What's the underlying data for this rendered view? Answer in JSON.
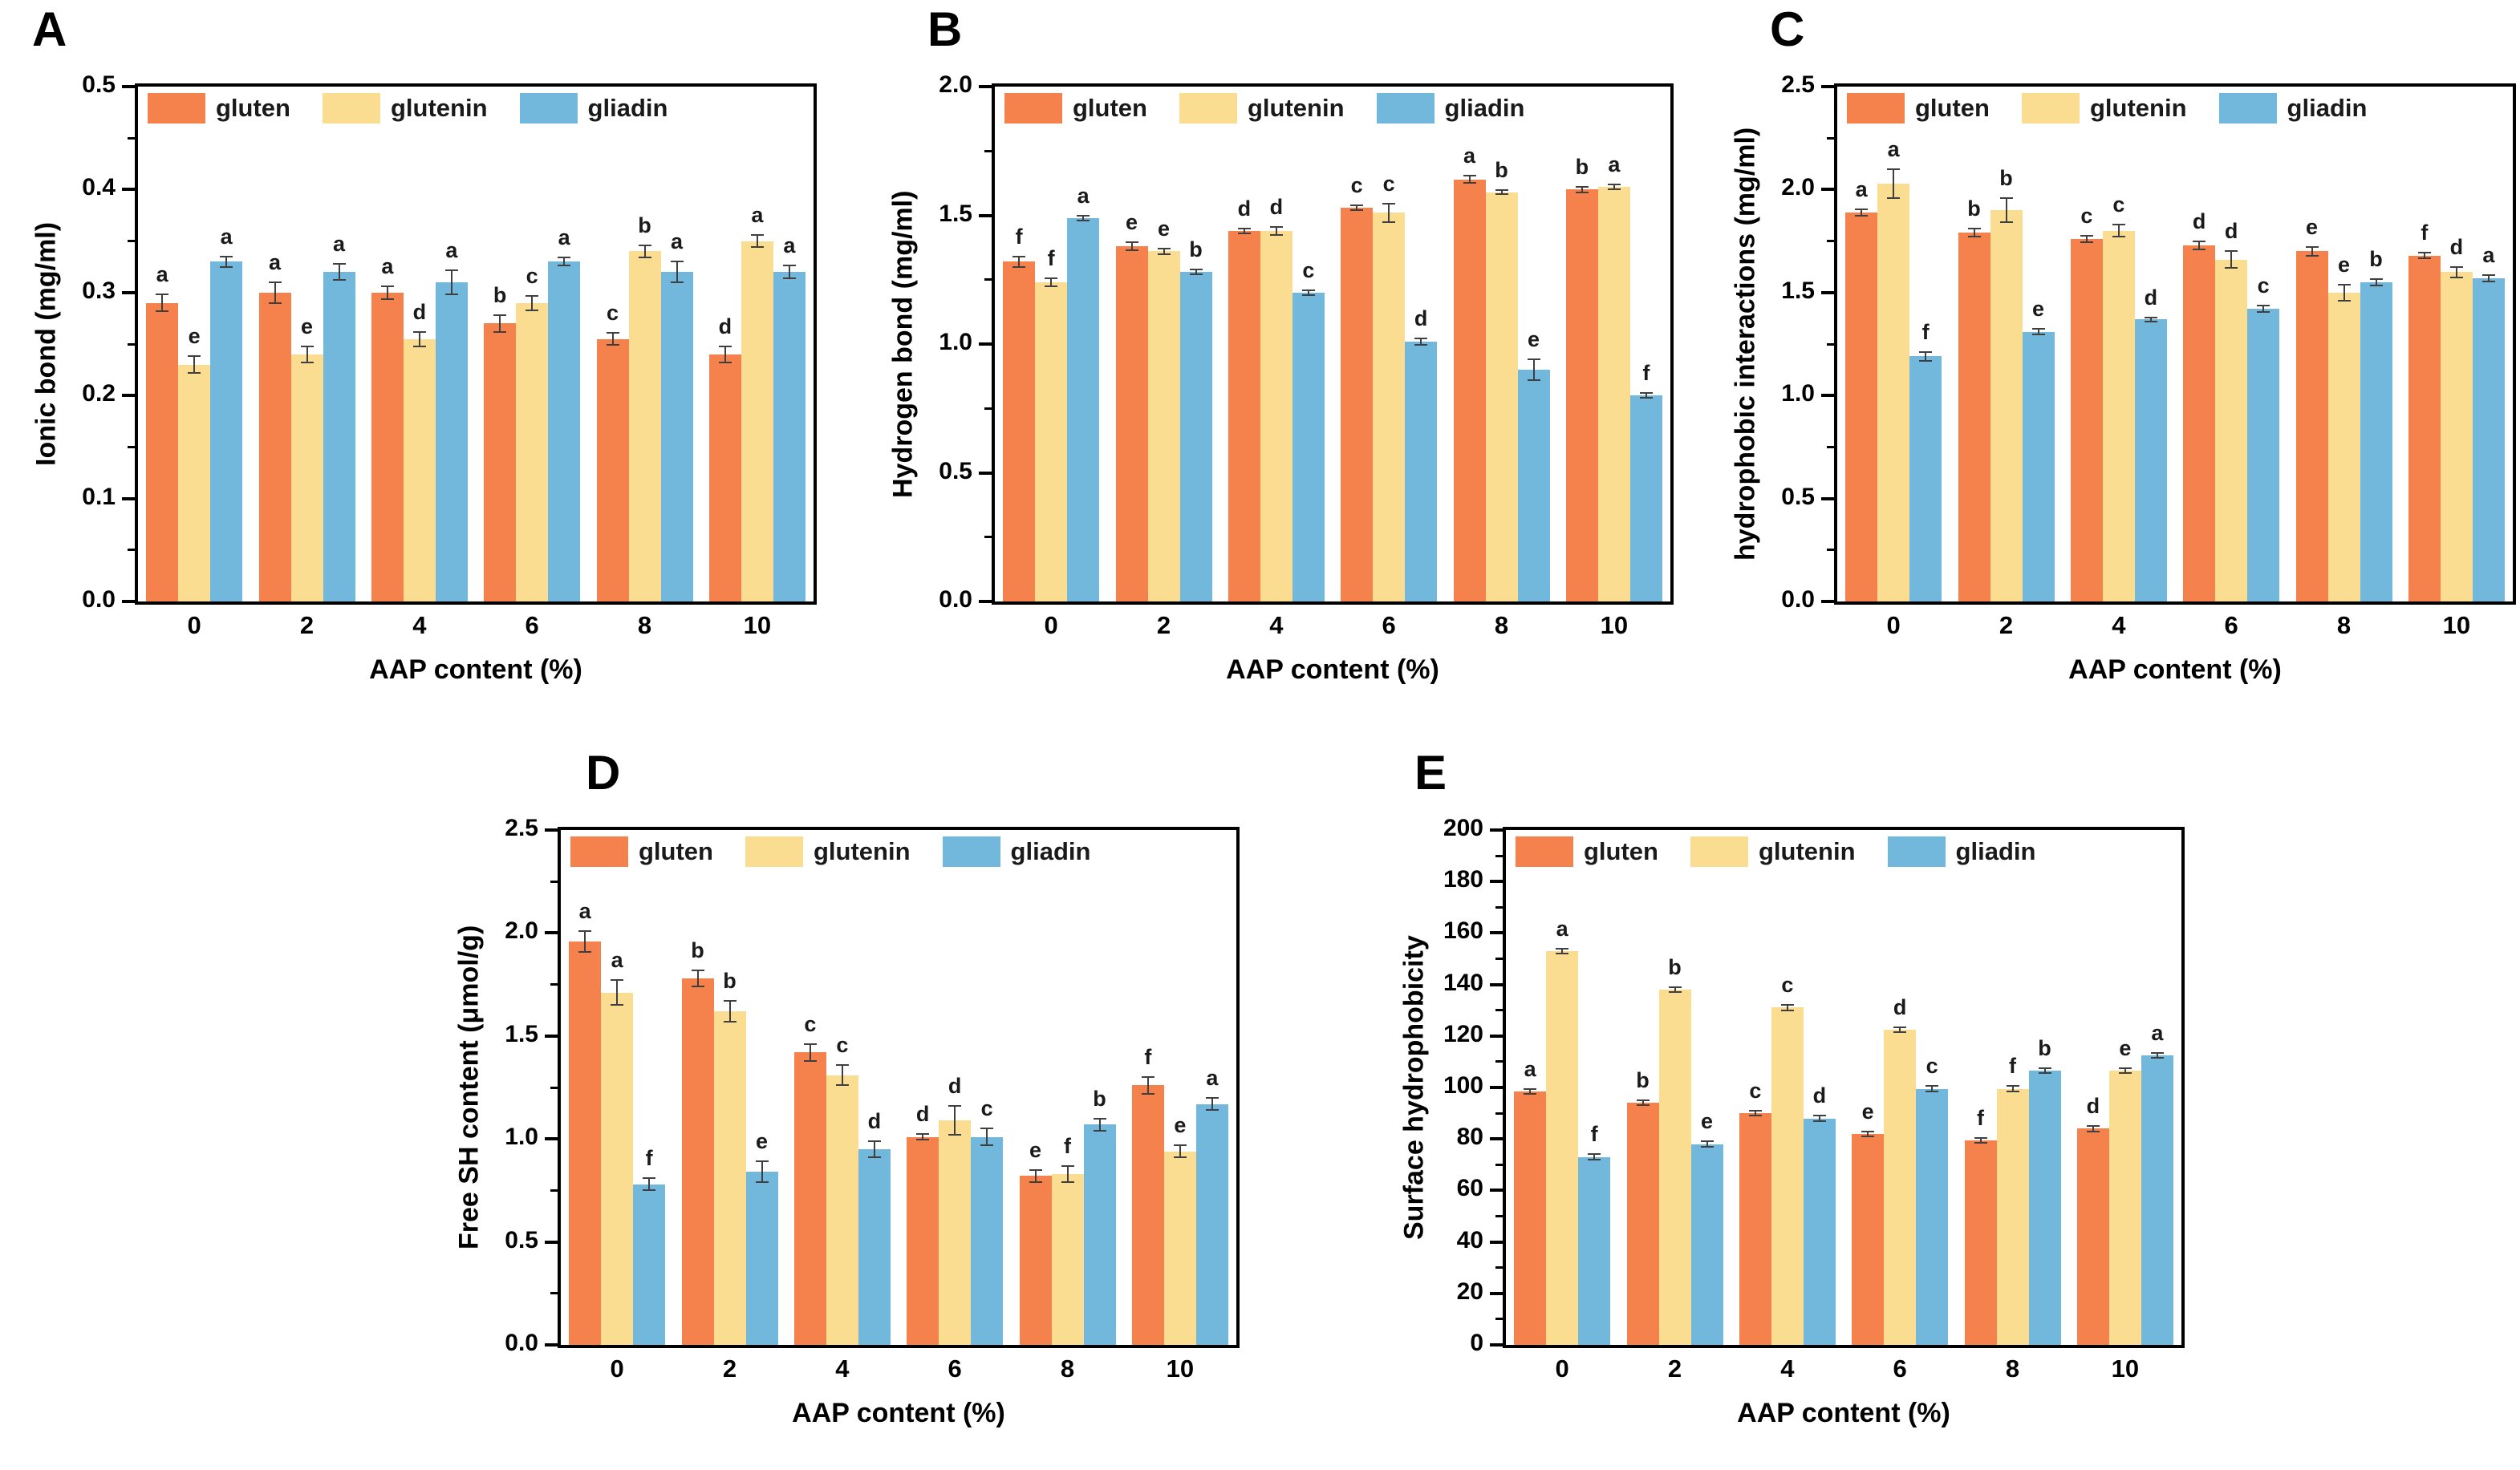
{
  "figure": {
    "background": "#ffffff",
    "description": "Five-panel grouped bar figure comparing chemical interactions of gluten, glutenin and gliadin at increasing AAP content"
  },
  "colors": {
    "gluten": "#F5814D",
    "glutenin": "#FBDD92",
    "gliadin": "#72B8DD",
    "error_bar": "#3f3f3f",
    "axis": "#000000",
    "text": "#000000"
  },
  "legend": {
    "items": [
      "gluten",
      "glutenin",
      "gliadin"
    ],
    "position": "top-left"
  },
  "chart_data": [
    {
      "id": "A",
      "type": "bar",
      "ylabel": "Ionic bond (mg/ml)",
      "xlabel": "AAP content (%)",
      "categories": [
        "0",
        "2",
        "4",
        "6",
        "8",
        "10"
      ],
      "ylim": [
        0,
        0.5
      ],
      "ytick_step": 0.1,
      "ytick_decimals": 1,
      "grid": false,
      "legend_position": "top-left",
      "series": [
        {
          "name": "gluten",
          "values": [
            0.29,
            0.3,
            0.3,
            0.27,
            0.255,
            0.24
          ],
          "errors": [
            0.008,
            0.01,
            0.006,
            0.008,
            0.006,
            0.008
          ],
          "letters": [
            "a",
            "a",
            "a",
            "b",
            "c",
            "d"
          ]
        },
        {
          "name": "glutenin",
          "values": [
            0.23,
            0.24,
            0.255,
            0.29,
            0.34,
            0.35
          ],
          "errors": [
            0.008,
            0.008,
            0.007,
            0.007,
            0.006,
            0.006
          ],
          "letters": [
            "e",
            "e",
            "d",
            "c",
            "b",
            "a"
          ]
        },
        {
          "name": "gliadin",
          "values": [
            0.33,
            0.32,
            0.31,
            0.33,
            0.32,
            0.32
          ],
          "errors": [
            0.005,
            0.008,
            0.012,
            0.004,
            0.01,
            0.006
          ],
          "letters": [
            "a",
            "a",
            "a",
            "a",
            "a",
            "a"
          ]
        }
      ]
    },
    {
      "id": "B",
      "type": "bar",
      "ylabel": "Hydrogen bond (mg/ml)",
      "xlabel": "AAP content (%)",
      "categories": [
        "0",
        "2",
        "4",
        "6",
        "8",
        "10"
      ],
      "ylim": [
        0,
        2.0
      ],
      "ytick_step": 0.5,
      "ytick_decimals": 1,
      "grid": false,
      "legend_position": "top-left",
      "series": [
        {
          "name": "gluten",
          "values": [
            1.32,
            1.38,
            1.44,
            1.53,
            1.64,
            1.6
          ],
          "errors": [
            0.02,
            0.015,
            0.01,
            0.01,
            0.015,
            0.01
          ],
          "letters": [
            "f",
            "e",
            "d",
            "c",
            "a",
            "b"
          ]
        },
        {
          "name": "glutenin",
          "values": [
            1.24,
            1.36,
            1.44,
            1.51,
            1.59,
            1.61
          ],
          "errors": [
            0.015,
            0.01,
            0.015,
            0.035,
            0.008,
            0.01
          ],
          "letters": [
            "f",
            "e",
            "d",
            "c",
            "b",
            "a"
          ]
        },
        {
          "name": "gliadin",
          "values": [
            1.49,
            1.28,
            1.2,
            1.01,
            0.9,
            0.8
          ],
          "errors": [
            0.01,
            0.01,
            0.01,
            0.012,
            0.04,
            0.01
          ],
          "letters": [
            "a",
            "b",
            "c",
            "d",
            "e",
            "f"
          ]
        }
      ]
    },
    {
      "id": "C",
      "type": "bar",
      "ylabel": "hydrophobic interactions (mg/ml)",
      "xlabel": "AAP content (%)",
      "categories": [
        "0",
        "2",
        "4",
        "6",
        "8",
        "10"
      ],
      "ylim": [
        0,
        2.5
      ],
      "ytick_step": 0.5,
      "ytick_decimals": 1,
      "grid": false,
      "legend_position": "top-left",
      "series": [
        {
          "name": "gluten",
          "values": [
            1.89,
            1.79,
            1.76,
            1.73,
            1.7,
            1.68
          ],
          "errors": [
            0.015,
            0.02,
            0.015,
            0.02,
            0.02,
            0.015
          ],
          "letters": [
            "a",
            "b",
            "c",
            "d",
            "e",
            "f"
          ]
        },
        {
          "name": "glutenin",
          "values": [
            2.03,
            1.9,
            1.8,
            1.66,
            1.5,
            1.6
          ],
          "errors": [
            0.07,
            0.06,
            0.03,
            0.04,
            0.04,
            0.025
          ],
          "letters": [
            "a",
            "b",
            "c",
            "d",
            "e",
            "d"
          ]
        },
        {
          "name": "gliadin",
          "values": [
            1.19,
            1.31,
            1.37,
            1.42,
            1.55,
            1.57
          ],
          "errors": [
            0.02,
            0.015,
            0.01,
            0.015,
            0.015,
            0.015
          ],
          "letters": [
            "f",
            "e",
            "d",
            "c",
            "b",
            "a"
          ]
        }
      ]
    },
    {
      "id": "D",
      "type": "bar",
      "ylabel": "Free SH content (μmol/g)",
      "xlabel": "AAP content (%)",
      "categories": [
        "0",
        "2",
        "4",
        "6",
        "8",
        "10"
      ],
      "ylim": [
        0,
        2.5
      ],
      "ytick_step": 0.5,
      "ytick_decimals": 1,
      "grid": false,
      "legend_position": "top-left",
      "series": [
        {
          "name": "gluten",
          "values": [
            1.96,
            1.78,
            1.42,
            1.01,
            0.82,
            1.26
          ],
          "errors": [
            0.05,
            0.04,
            0.04,
            0.015,
            0.03,
            0.04
          ],
          "letters": [
            "a",
            "b",
            "c",
            "d",
            "e",
            "f"
          ]
        },
        {
          "name": "glutenin",
          "values": [
            1.71,
            1.62,
            1.31,
            1.09,
            0.83,
            0.94
          ],
          "errors": [
            0.06,
            0.05,
            0.05,
            0.07,
            0.04,
            0.03
          ],
          "letters": [
            "a",
            "b",
            "c",
            "d",
            "f",
            "e"
          ]
        },
        {
          "name": "gliadin",
          "values": [
            0.78,
            0.84,
            0.95,
            1.01,
            1.07,
            1.17
          ],
          "errors": [
            0.03,
            0.05,
            0.04,
            0.04,
            0.03,
            0.03
          ],
          "letters": [
            "f",
            "e",
            "d",
            "c",
            "b",
            "a"
          ]
        }
      ]
    },
    {
      "id": "E",
      "type": "bar",
      "ylabel": "Surface hydrophobicity",
      "xlabel": "AAP content (%)",
      "categories": [
        "0",
        "2",
        "4",
        "6",
        "8",
        "10"
      ],
      "ylim": [
        0,
        200
      ],
      "ytick_step": 20,
      "ytick_decimals": 0,
      "grid": false,
      "legend_position": "top-left",
      "series": [
        {
          "name": "gluten",
          "values": [
            98.5,
            94,
            90,
            82,
            79.5,
            84
          ],
          "errors": [
            1,
            1,
            1,
            1,
            1,
            1
          ],
          "letters": [
            "a",
            "b",
            "c",
            "e",
            "f",
            "d"
          ]
        },
        {
          "name": "glutenin",
          "values": [
            153,
            138,
            131,
            122.5,
            99.5,
            106.5
          ],
          "errors": [
            1,
            1,
            1,
            1,
            1,
            1
          ],
          "letters": [
            "a",
            "b",
            "c",
            "d",
            "f",
            "e"
          ]
        },
        {
          "name": "gliadin",
          "values": [
            73,
            78,
            88,
            99.5,
            106.5,
            112.5
          ],
          "errors": [
            1,
            1,
            1,
            1,
            1,
            1
          ],
          "letters": [
            "f",
            "e",
            "d",
            "c",
            "b",
            "a"
          ]
        }
      ]
    }
  ]
}
